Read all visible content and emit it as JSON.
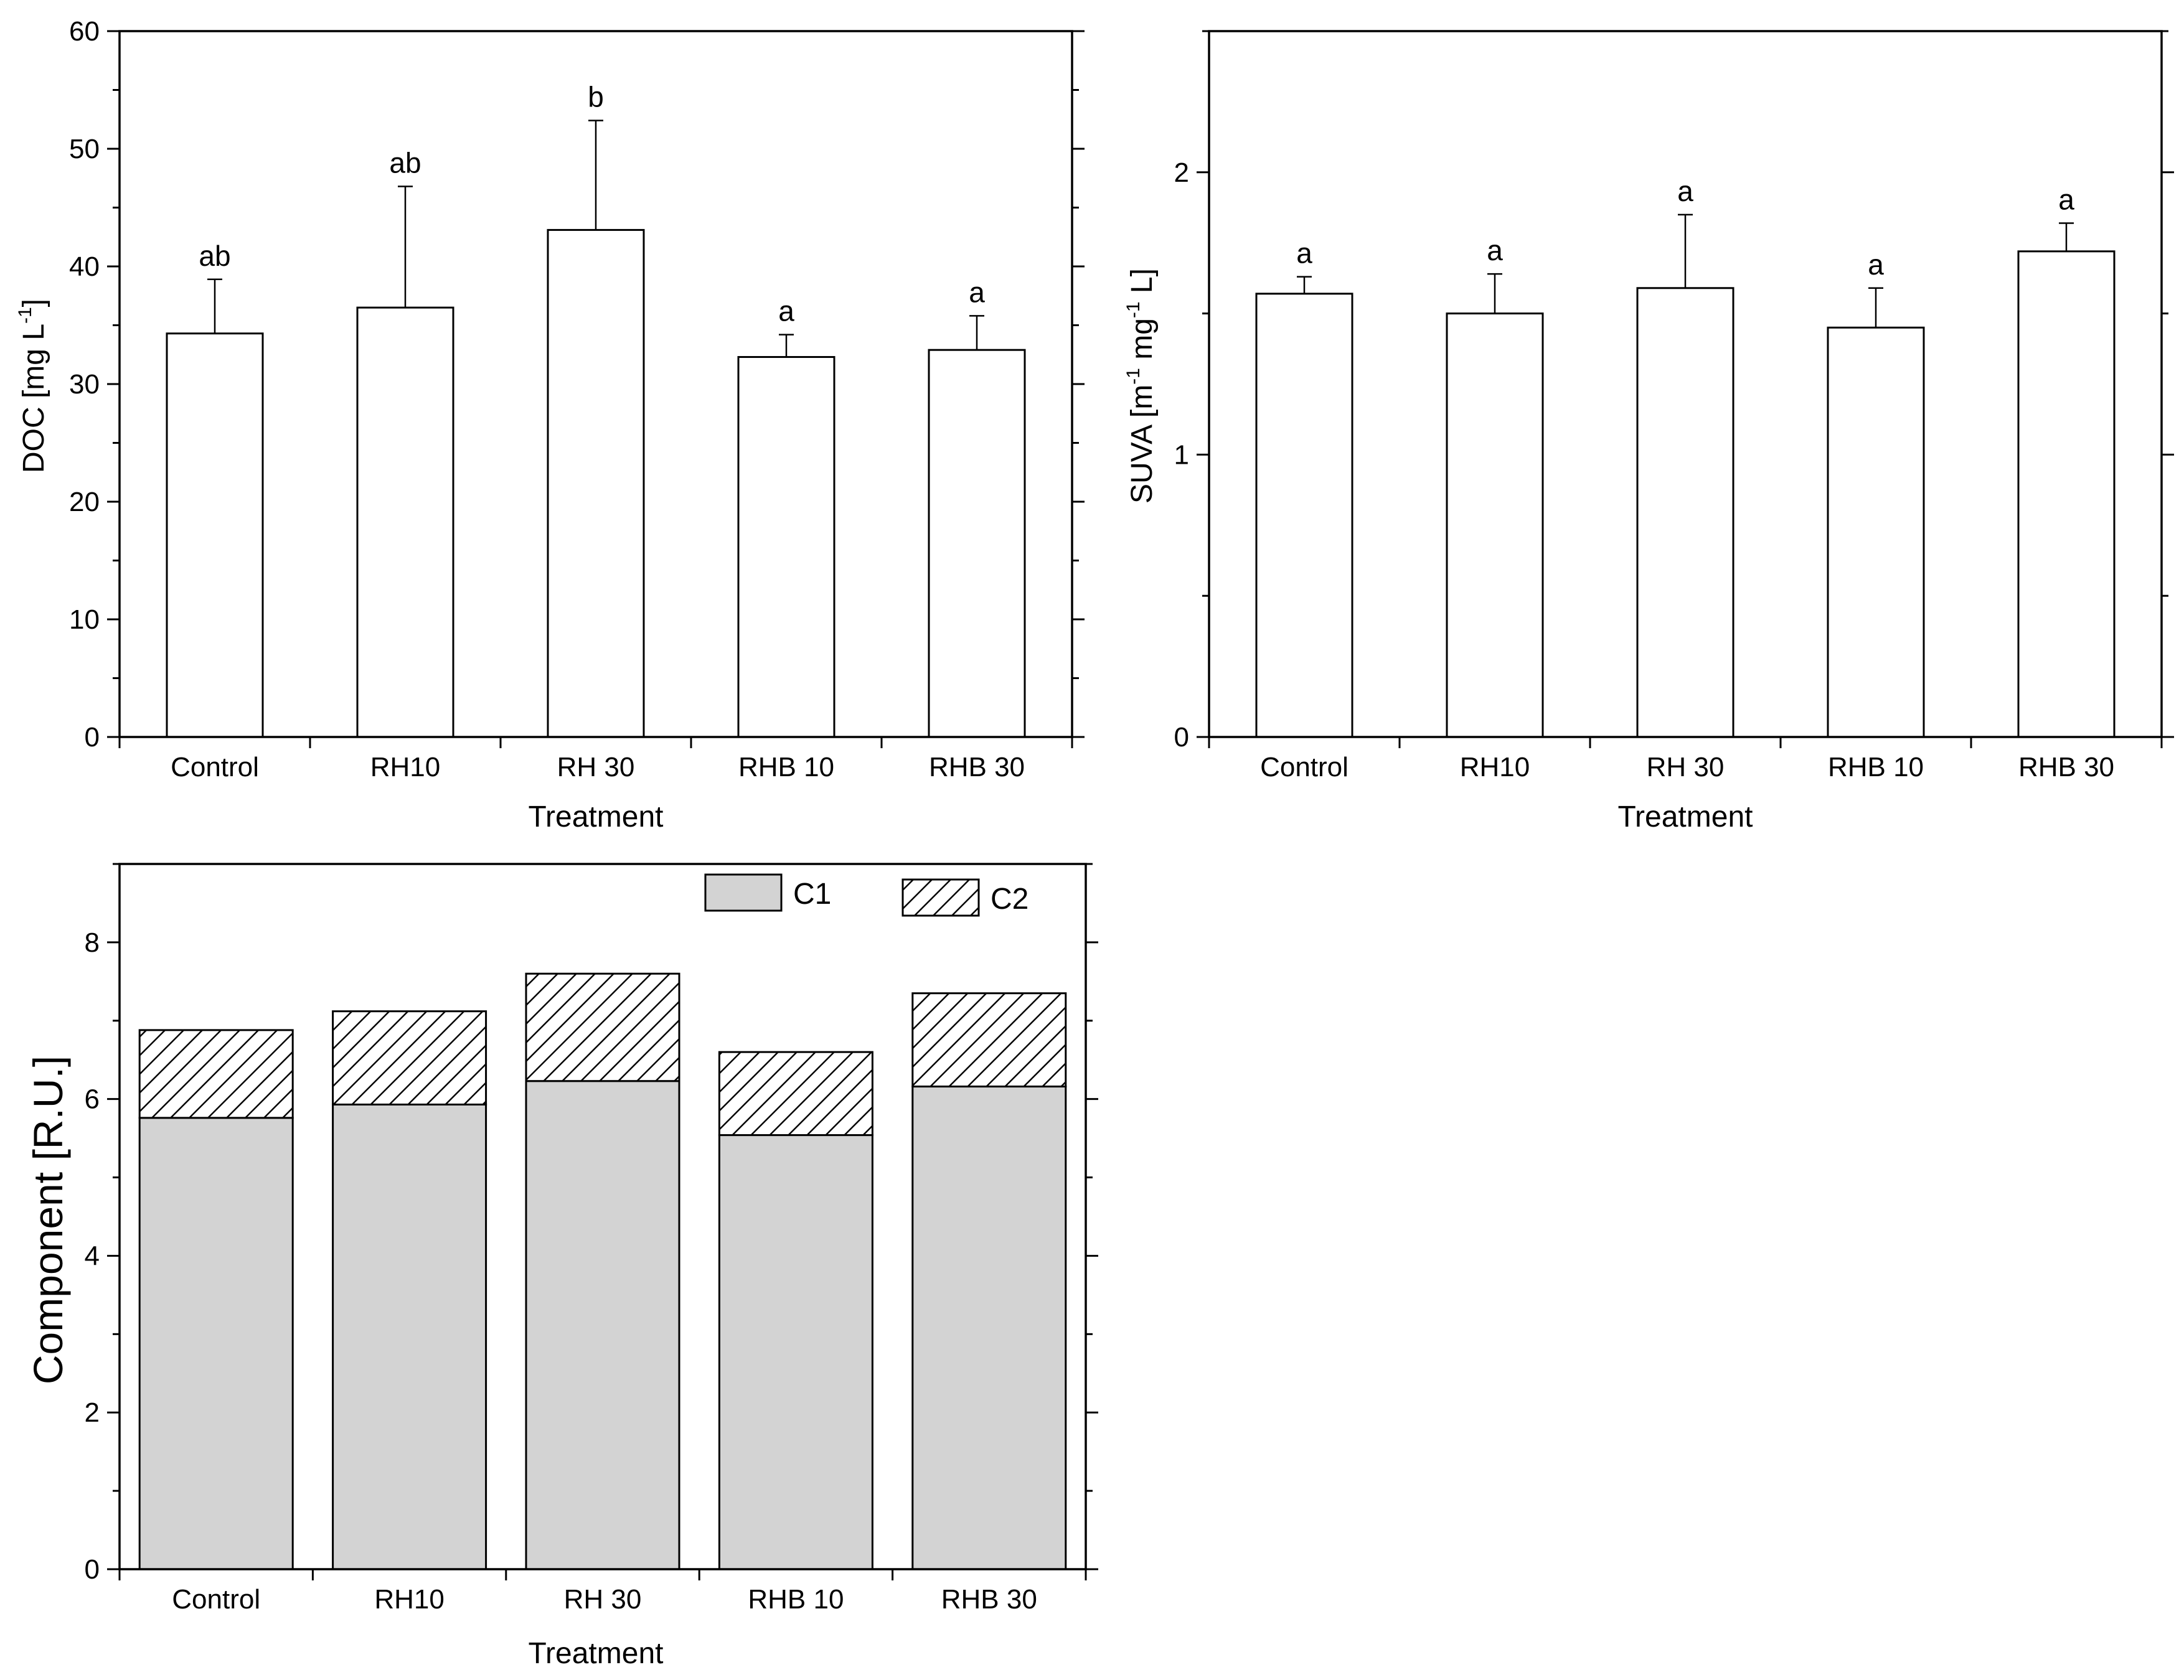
{
  "chart_data": [
    {
      "type": "bar",
      "categories": [
        "Control",
        "RH10",
        "RH 30",
        "RHB 10",
        "RHB 30"
      ],
      "values": [
        34.3,
        36.5,
        43.1,
        32.3,
        32.9
      ],
      "errors": [
        4.6,
        10.3,
        9.3,
        1.9,
        2.9
      ],
      "significance": [
        "ab",
        "ab",
        "b",
        "a",
        "a"
      ],
      "ylabel": "DOC [mg L",
      "ylabel_sup": "-1",
      "ylabel_end": "]",
      "xlabel": "Treatment",
      "ylim": [
        0,
        60
      ],
      "yticks": [
        "0",
        "10",
        "20",
        "30",
        "40",
        "50",
        "60"
      ]
    },
    {
      "type": "bar",
      "categories": [
        "Control",
        "RH10",
        "RH 30",
        "RHB 10",
        "RHB 30"
      ],
      "values": [
        1.57,
        1.5,
        1.59,
        1.45,
        1.72
      ],
      "errors": [
        0.06,
        0.14,
        0.26,
        0.14,
        0.1
      ],
      "significance": [
        "a",
        "a",
        "a",
        "a",
        "a"
      ],
      "ylabel_parts": [
        "SUVA [m",
        "-1",
        " mg",
        "-1",
        " L]"
      ],
      "xlabel": "Treatment",
      "ylim": [
        0,
        2.5
      ],
      "yticks": [
        "0",
        "1",
        "2"
      ]
    },
    {
      "type": "stacked-bar",
      "categories": [
        "Control",
        "RH10",
        "RH 30",
        "RHB 10",
        "RHB 30"
      ],
      "series": [
        {
          "name": "C1",
          "values": [
            5.76,
            5.93,
            6.23,
            5.54,
            6.16
          ],
          "fill": "solid-gray"
        },
        {
          "name": "C2",
          "values": [
            1.12,
            1.19,
            1.37,
            1.06,
            1.19
          ],
          "fill": "hatched"
        }
      ],
      "ylabel": "Component [R.U.]",
      "xlabel": "Treatment",
      "ylim": [
        0,
        9
      ],
      "yticks": [
        "0",
        "2",
        "4",
        "6",
        "8"
      ],
      "legend_position": "top-right"
    }
  ],
  "colors": {
    "bar_outline": "#000000",
    "bar_fill": "#ffffff",
    "c1_fill": "#d3d3d3",
    "hatch": "#000000"
  }
}
